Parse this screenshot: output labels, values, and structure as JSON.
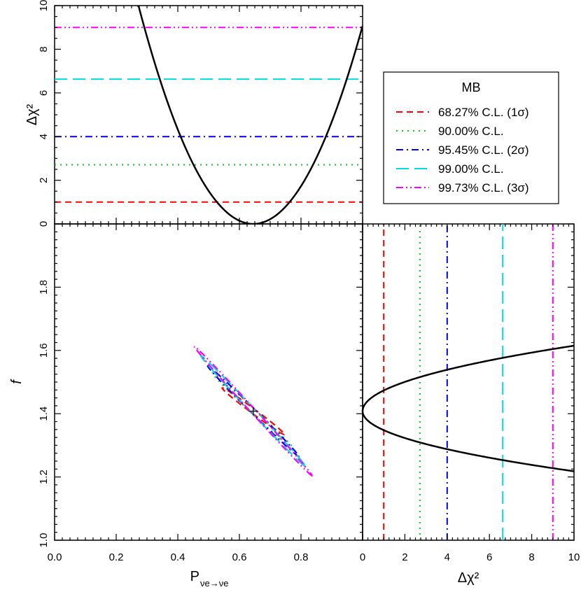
{
  "chart_data": [
    {
      "type": "line",
      "panel": "top",
      "xlabel": "",
      "ylabel": "Δχ²",
      "xlim": [
        0,
        1
      ],
      "ylim": [
        0,
        10
      ],
      "yticks": [
        "0",
        "2",
        "4",
        "6",
        "8",
        "10"
      ],
      "levels": [
        1.0,
        2.71,
        4.0,
        6.63,
        9.0
      ],
      "curve": {
        "min_x": 0.645,
        "k": 72.0
      }
    },
    {
      "type": "line",
      "panel": "center",
      "xlabel": "P",
      "xlabel_sub": "νe→νe",
      "ylabel": "f",
      "xlim": [
        0,
        1
      ],
      "ylim": [
        1.0,
        2.0
      ],
      "xticks": [
        "0.0",
        "0.2",
        "0.4",
        "0.6",
        "0.8"
      ],
      "yticks": [
        "1.0",
        "1.2",
        "1.4",
        "1.6",
        "1.8"
      ],
      "best_fit": {
        "x": 0.645,
        "y": 1.408,
        "marker": "+"
      },
      "contours": [
        {
          "level": 1.0,
          "center": [
            0.645,
            1.408
          ],
          "corner_a": [
            0.545,
            1.48
          ],
          "corner_b": [
            0.744,
            1.336
          ]
        },
        {
          "level": 2.71,
          "center": [
            0.645,
            1.408
          ],
          "corner_a": [
            0.515,
            1.525
          ],
          "corner_b": [
            0.775,
            1.29
          ]
        },
        {
          "level": 4.0,
          "center": [
            0.645,
            1.408
          ],
          "corner_a": [
            0.5,
            1.548
          ],
          "corner_b": [
            0.79,
            1.268
          ]
        },
        {
          "level": 6.63,
          "center": [
            0.645,
            1.408
          ],
          "corner_a": [
            0.478,
            1.58
          ],
          "corner_b": [
            0.812,
            1.236
          ]
        },
        {
          "level": 9.0,
          "center": [
            0.645,
            1.408
          ],
          "corner_a": [
            0.458,
            1.608
          ],
          "corner_b": [
            0.832,
            1.208
          ]
        }
      ]
    },
    {
      "type": "line",
      "panel": "right",
      "xlabel": "Δχ²",
      "ylabel": "",
      "xlim": [
        0,
        10
      ],
      "ylim": [
        1.0,
        2.0
      ],
      "xticks": [
        "0",
        "2",
        "4",
        "6",
        "8",
        "10"
      ],
      "levels": [
        1.0,
        2.71,
        4.0,
        6.63,
        9.0
      ],
      "curve": {
        "min_y": 1.408,
        "upper_at_10": 1.615,
        "lower_at_10": 1.218
      }
    }
  ],
  "legend": {
    "title": "MB",
    "entries": [
      {
        "label": "68.27% C.L. (1σ)",
        "color": "#ff0000",
        "dash": "dash"
      },
      {
        "label": "90.00% C.L.",
        "color": "#22bb22",
        "dash": "dot"
      },
      {
        "label": "95.45% C.L. (2σ)",
        "color": "#0000ee",
        "dash": "dashdot"
      },
      {
        "label": "99.00% C.L.",
        "color": "#00dddd",
        "dash": "longdash"
      },
      {
        "label": "99.73% C.L. (3σ)",
        "color": "#ff00ff",
        "dash": "dashdotdot"
      }
    ]
  }
}
